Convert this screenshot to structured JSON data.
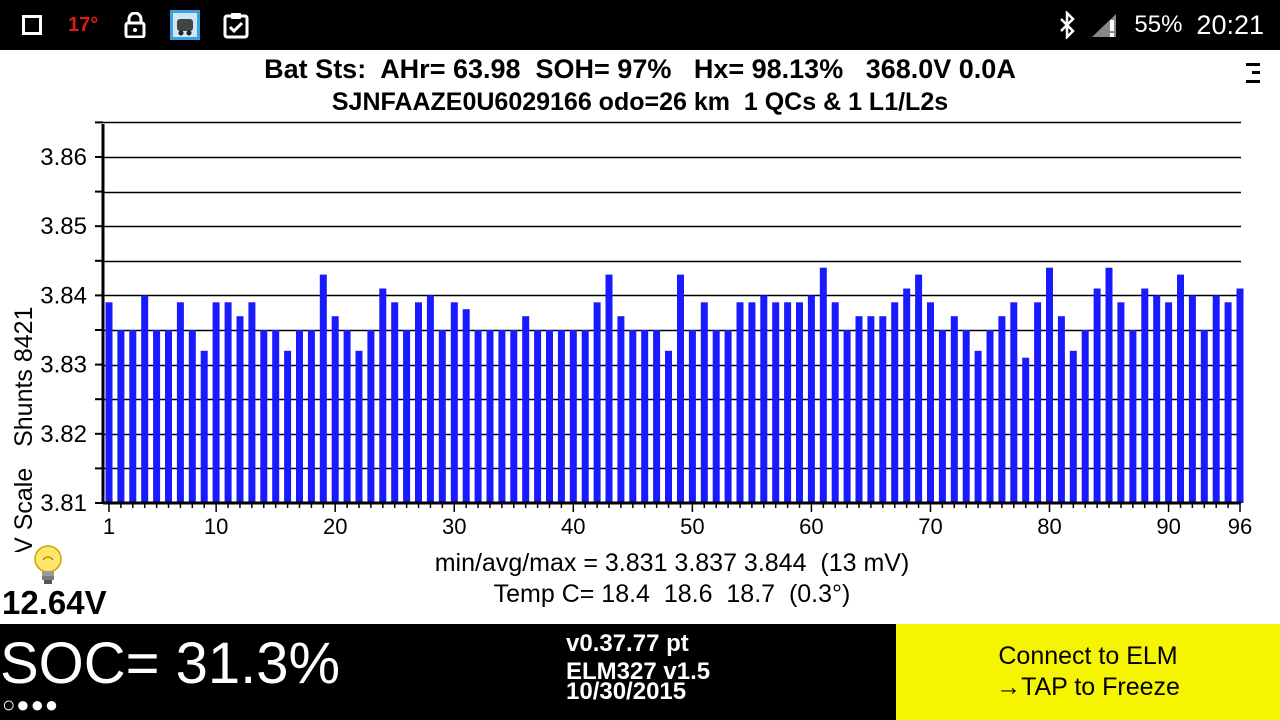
{
  "status_bar": {
    "temperature": "17°",
    "battery": "55%",
    "time": "20:21",
    "icons": [
      "square-icon",
      "lock-icon",
      "app-icon",
      "clipboard-check-icon",
      "bluetooth-icon",
      "signal-icon"
    ]
  },
  "header": {
    "line1": "Bat Sts:  AHr= 63.98  SOH= 97%   Hx= 98.13%   368.0V 0.0A",
    "line2": "SJNFAAZE0U6029166 odo=26 km  1 QCs & 1 L1/L2s"
  },
  "stats": {
    "minavgmax": "min/avg/max = 3.831 3.837 3.844  (13 mV)",
    "temp": "Temp C= 18.4  18.6  18.7  (0.3°)"
  },
  "aux_battery": "12.64V",
  "footer": {
    "soc": "SOC= 31.3%",
    "dots": "○●●●",
    "version": "v0.37.77 pt",
    "elm": "ELM327 v1.5",
    "date": "10/30/2015",
    "connect_line1": "Connect to ELM",
    "connect_line2": "→TAP to Freeze"
  },
  "colors": {
    "bar": "#1a1aff",
    "status_temp": "#e01919",
    "footer_yellow": "#f6f500"
  },
  "chart_data": {
    "type": "bar",
    "ylabel": "50 mV Scale   Shunts 8421",
    "ylim": [
      3.81,
      3.865
    ],
    "yticks": [
      3.81,
      3.82,
      3.83,
      3.84,
      3.85,
      3.86
    ],
    "xticks": [
      1,
      10,
      20,
      30,
      40,
      50,
      60,
      70,
      80,
      90,
      96
    ],
    "values": [
      3.839,
      3.835,
      3.835,
      3.84,
      3.835,
      3.835,
      3.839,
      3.835,
      3.832,
      3.839,
      3.839,
      3.837,
      3.839,
      3.835,
      3.835,
      3.832,
      3.835,
      3.835,
      3.843,
      3.837,
      3.835,
      3.832,
      3.835,
      3.841,
      3.839,
      3.835,
      3.839,
      3.84,
      3.835,
      3.839,
      3.838,
      3.835,
      3.835,
      3.835,
      3.835,
      3.837,
      3.835,
      3.835,
      3.835,
      3.835,
      3.835,
      3.839,
      3.843,
      3.837,
      3.835,
      3.835,
      3.835,
      3.832,
      3.843,
      3.835,
      3.839,
      3.835,
      3.835,
      3.839,
      3.839,
      3.84,
      3.839,
      3.839,
      3.839,
      3.84,
      3.844,
      3.839,
      3.835,
      3.837,
      3.837,
      3.837,
      3.839,
      3.841,
      3.843,
      3.839,
      3.835,
      3.837,
      3.835,
      3.832,
      3.835,
      3.837,
      3.839,
      3.831,
      3.839,
      3.844,
      3.837,
      3.832,
      3.835,
      3.841,
      3.844,
      3.839,
      3.835,
      3.841,
      3.84,
      3.839,
      3.843,
      3.84,
      3.835,
      3.84,
      3.839,
      3.841
    ]
  }
}
